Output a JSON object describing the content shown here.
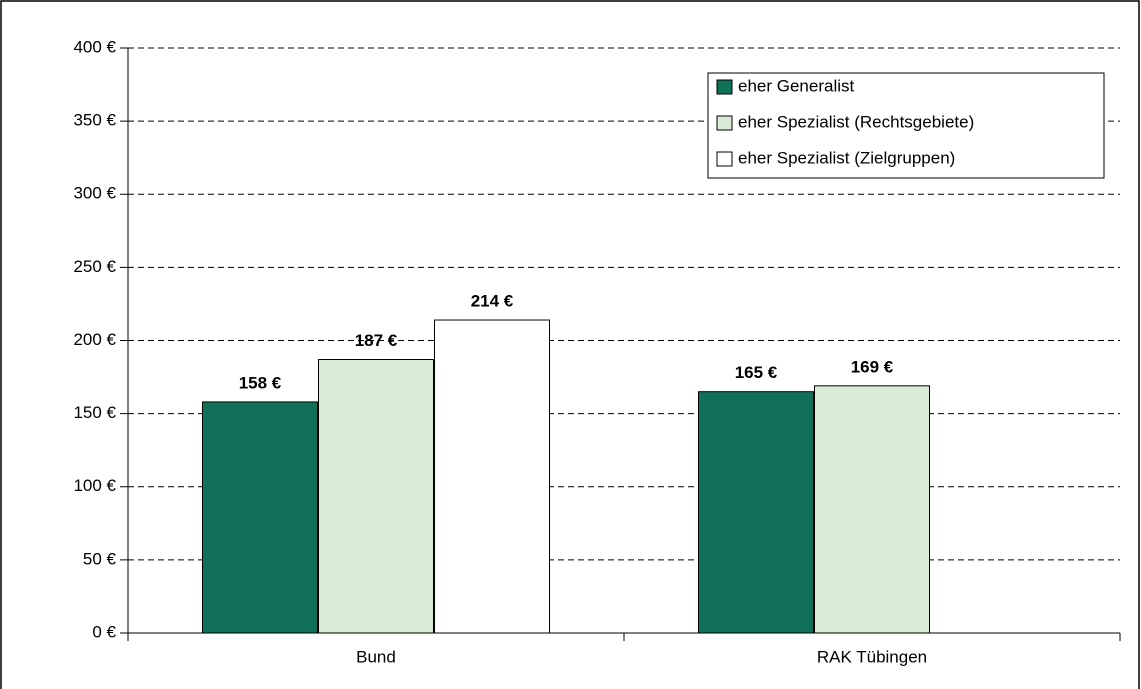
{
  "chart_data": {
    "type": "bar",
    "categories": [
      "Bund",
      "RAK Tübingen"
    ],
    "series": [
      {
        "name": "eher Generalist",
        "color": "#107058",
        "values": [
          158,
          165
        ],
        "value_labels": [
          "158 €",
          "165 €"
        ]
      },
      {
        "name": "eher Spezialist (Rechtsgebiete)",
        "color": "#daecd6",
        "values": [
          187,
          169
        ],
        "value_labels": [
          "187 €",
          "169 €"
        ]
      },
      {
        "name": "eher Spezialist (Zielgruppen)",
        "color": "#ffffff",
        "values": [
          214,
          null
        ],
        "value_labels": [
          "214 €",
          null
        ]
      }
    ],
    "ylim": [
      0,
      400
    ],
    "yticks": [
      {
        "value": 0,
        "label": "0 €"
      },
      {
        "value": 50,
        "label": "50 €"
      },
      {
        "value": 100,
        "label": "100 €"
      },
      {
        "value": 150,
        "label": "150 €"
      },
      {
        "value": 200,
        "label": "200 €"
      },
      {
        "value": 250,
        "label": "250 €"
      },
      {
        "value": 300,
        "label": "300 €"
      },
      {
        "value": 350,
        "label": "350 €"
      },
      {
        "value": 400,
        "label": "400 €"
      }
    ],
    "grid": true,
    "legend": "upper right"
  }
}
